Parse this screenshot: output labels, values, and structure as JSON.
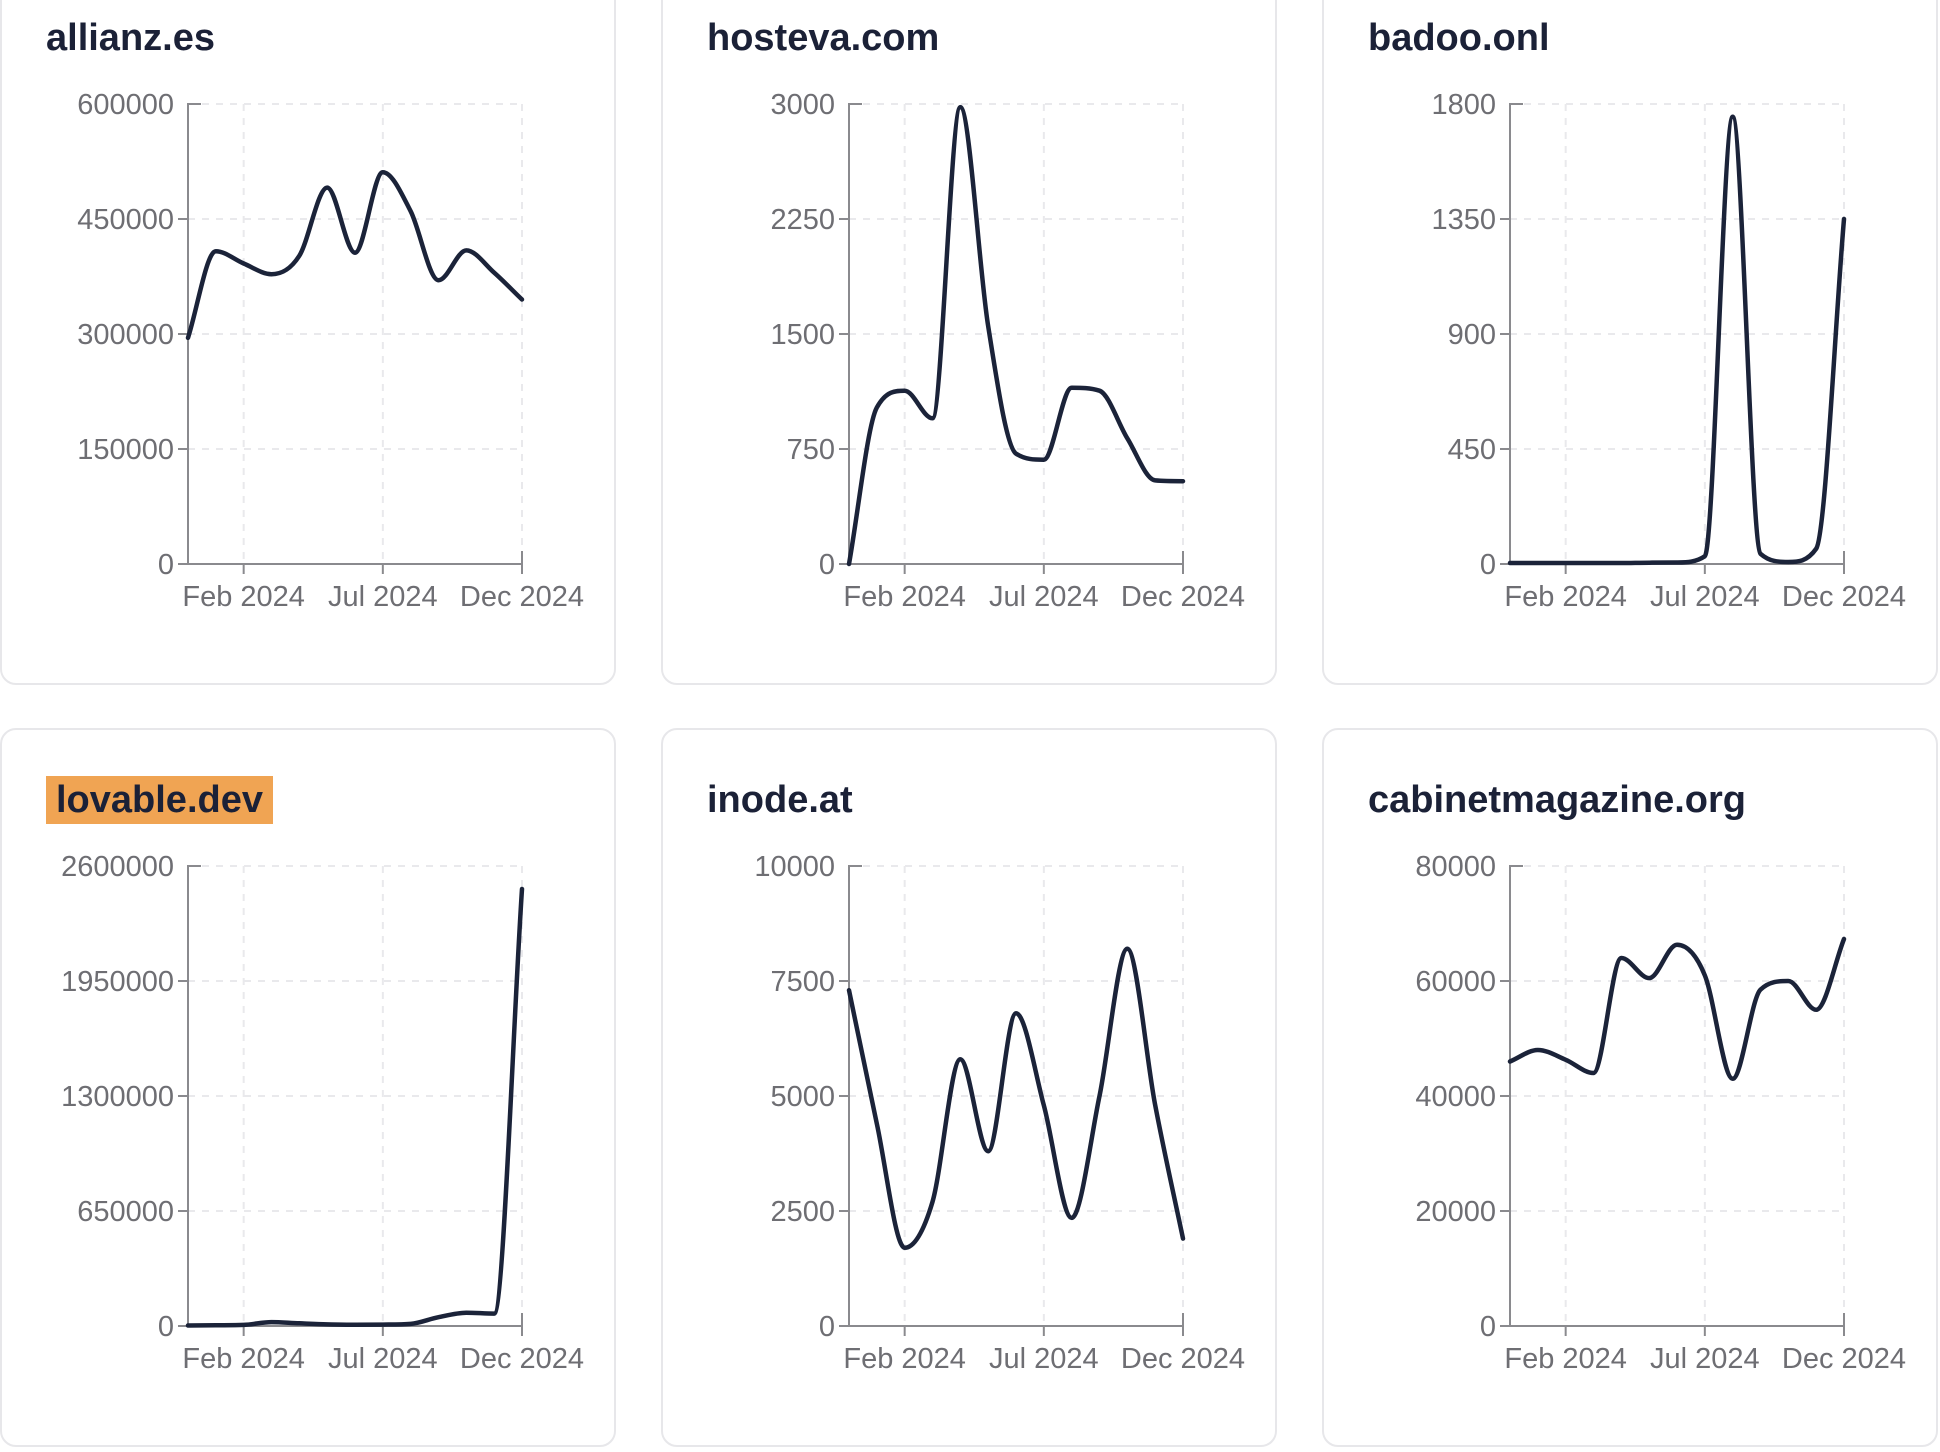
{
  "page": {
    "background_color": "#ffffff",
    "card_border_color": "#e7e7ea",
    "title_color": "#1b2137",
    "highlight_color": "#f0a453",
    "series_line_color": "#1b2339",
    "axis_color": "#8a8a8e",
    "grid_color": "#e9e9ec",
    "tick_label_color": "#6e6e73"
  },
  "chart_data": [
    {
      "type": "line",
      "title": "allianz.es",
      "title_highlighted": false,
      "x_tick_labels": [
        "Feb 2024",
        "Jul 2024",
        "Dec 2024"
      ],
      "x_tick_index": [
        2,
        7,
        12
      ],
      "n_points": 13,
      "y_ticks": [
        0,
        150000,
        300000,
        450000,
        600000
      ],
      "y_tick_labels": [
        "0",
        "150000",
        "300000",
        "450000",
        "600000"
      ],
      "ylim": [
        0,
        600000
      ],
      "grid": true,
      "values": [
        295000,
        408000,
        392000,
        378000,
        402000,
        491000,
        406000,
        511000,
        460000,
        370000,
        409000,
        380000,
        345000
      ]
    },
    {
      "type": "line",
      "title": "hosteva.com",
      "title_highlighted": false,
      "x_tick_labels": [
        "Feb 2024",
        "Jul 2024",
        "Dec 2024"
      ],
      "x_tick_index": [
        2,
        7,
        12
      ],
      "n_points": 13,
      "y_ticks": [
        0,
        750,
        1500,
        2250,
        3000
      ],
      "y_tick_labels": [
        "0",
        "750",
        "1500",
        "2250",
        "3000"
      ],
      "ylim": [
        0,
        3000
      ],
      "grid": true,
      "values": [
        0,
        1020,
        1130,
        950,
        2980,
        1550,
        720,
        680,
        1150,
        1130,
        820,
        545,
        540
      ]
    },
    {
      "type": "line",
      "title": "badoo.onl",
      "title_highlighted": false,
      "x_tick_labels": [
        "Feb 2024",
        "Jul 2024",
        "Dec 2024"
      ],
      "x_tick_index": [
        2,
        7,
        12
      ],
      "n_points": 13,
      "y_ticks": [
        0,
        450,
        900,
        1350,
        1800
      ],
      "y_tick_labels": [
        "0",
        "450",
        "900",
        "1350",
        "1800"
      ],
      "ylim": [
        0,
        1800
      ],
      "grid": true,
      "values": [
        4,
        4,
        4,
        4,
        4,
        5,
        6,
        30,
        1750,
        40,
        8,
        60,
        1350
      ]
    },
    {
      "type": "line",
      "title": "lovable.dev",
      "title_highlighted": true,
      "x_tick_labels": [
        "Feb 2024",
        "Jul 2024",
        "Dec 2024"
      ],
      "x_tick_index": [
        2,
        7,
        12
      ],
      "n_points": 13,
      "y_ticks": [
        0,
        650000,
        1300000,
        1950000,
        2600000
      ],
      "y_tick_labels": [
        "0",
        "650000",
        "1300000",
        "1950000",
        "2600000"
      ],
      "ylim": [
        0,
        2600000
      ],
      "grid": true,
      "values": [
        3000,
        4000,
        6000,
        22000,
        15000,
        9000,
        7000,
        8000,
        12000,
        50000,
        75000,
        70000,
        2470000
      ]
    },
    {
      "type": "line",
      "title": "inode.at",
      "title_highlighted": false,
      "x_tick_labels": [
        "Feb 2024",
        "Jul 2024",
        "Dec 2024"
      ],
      "x_tick_index": [
        2,
        7,
        12
      ],
      "n_points": 13,
      "y_ticks": [
        0,
        2500,
        5000,
        7500,
        10000
      ],
      "y_tick_labels": [
        "0",
        "2500",
        "5000",
        "7500",
        "10000"
      ],
      "ylim": [
        0,
        10000
      ],
      "grid": true,
      "values": [
        7300,
        4400,
        1700,
        2700,
        5800,
        3800,
        6800,
        4800,
        2350,
        5000,
        8200,
        4800,
        1900
      ]
    },
    {
      "type": "line",
      "title": "cabinetmagazine.org",
      "title_highlighted": false,
      "x_tick_labels": [
        "Feb 2024",
        "Jul 2024",
        "Dec 2024"
      ],
      "x_tick_index": [
        2,
        7,
        12
      ],
      "n_points": 13,
      "y_ticks": [
        0,
        20000,
        40000,
        60000,
        80000
      ],
      "y_tick_labels": [
        "0",
        "20000",
        "40000",
        "60000",
        "80000"
      ],
      "ylim": [
        0,
        80000
      ],
      "grid": true,
      "values": [
        46000,
        48000,
        46300,
        44000,
        64000,
        60500,
        66300,
        61000,
        43000,
        58500,
        60000,
        55000,
        67300
      ]
    }
  ]
}
